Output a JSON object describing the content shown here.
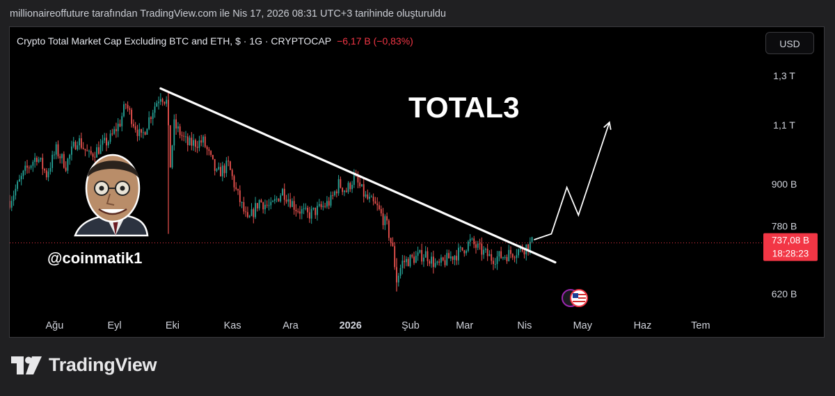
{
  "header": {
    "caption": "millionaireoffuture tarafından TradingView.com ile Nis 17, 2026 08:31 UTC+3 tarihinde oluşturuldu"
  },
  "legend": {
    "symbol": "Crypto Total Market Cap Excluding BTC and ETH, $ · 1G · CRYPTOCAP",
    "change": "−6,17 B (−0,83%)"
  },
  "toolbar": {
    "currency": "USD"
  },
  "overlay": {
    "title": "TOTAL3",
    "watermark_handle": "@coinmatik1"
  },
  "brand": {
    "name": "TradingView"
  },
  "chart_data": {
    "type": "candlestick",
    "symbol": "CRYPTOCAP:TOTAL3",
    "interval": "1G",
    "currency": "USD",
    "y_scale": "log",
    "y_ticks": [
      {
        "label": "1,3 T",
        "value": 1300
      },
      {
        "label": "1,1 T",
        "value": 1100
      },
      {
        "label": "900 B",
        "value": 900
      },
      {
        "label": "780 B",
        "value": 780
      },
      {
        "label": "620 B",
        "value": 620
      }
    ],
    "x_ticks": [
      "Ağu",
      "Eyl",
      "Eki",
      "Kas",
      "Ara",
      "2026",
      "Şub",
      "Mar",
      "Nis",
      "May",
      "Haz",
      "Tem"
    ],
    "x_range": [
      "2025-07-20",
      "2026-07-31"
    ],
    "last_price": {
      "label": "737,08 B",
      "value": 737.08,
      "countdown": "18:28:23"
    },
    "close_path": [
      [
        "2025-07-20",
        850
      ],
      [
        "2025-07-28",
        940
      ],
      [
        "2025-08-03",
        990
      ],
      [
        "2025-08-08",
        930
      ],
      [
        "2025-08-13",
        1010
      ],
      [
        "2025-08-18",
        960
      ],
      [
        "2025-08-24",
        1050
      ],
      [
        "2025-08-30",
        990
      ],
      [
        "2025-09-05",
        1020
      ],
      [
        "2025-09-10",
        1050
      ],
      [
        "2025-09-15",
        1110
      ],
      [
        "2025-09-18",
        1180
      ],
      [
        "2025-09-22",
        1110
      ],
      [
        "2025-09-26",
        1050
      ],
      [
        "2025-10-02",
        1160
      ],
      [
        "2025-10-06",
        1220
      ],
      [
        "2025-10-09",
        1190
      ],
      [
        "2025-10-11",
        960
      ],
      [
        "2025-10-13",
        1100
      ],
      [
        "2025-10-20",
        1030
      ],
      [
        "2025-10-28",
        1040
      ],
      [
        "2025-11-04",
        930
      ],
      [
        "2025-11-10",
        960
      ],
      [
        "2025-11-14",
        880
      ],
      [
        "2025-11-20",
        790
      ],
      [
        "2025-11-26",
        850
      ],
      [
        "2025-12-02",
        830
      ],
      [
        "2025-12-08",
        880
      ],
      [
        "2025-12-15",
        830
      ],
      [
        "2025-12-21",
        810
      ],
      [
        "2025-12-28",
        830
      ],
      [
        "2026-01-02",
        850
      ],
      [
        "2026-01-06",
        900
      ],
      [
        "2026-01-10",
        880
      ],
      [
        "2026-01-14",
        920
      ],
      [
        "2026-01-20",
        860
      ],
      [
        "2026-01-26",
        830
      ],
      [
        "2026-01-31",
        780
      ],
      [
        "2026-02-03",
        720
      ],
      [
        "2026-02-05",
        650
      ],
      [
        "2026-02-08",
        690
      ],
      [
        "2026-02-14",
        700
      ],
      [
        "2026-02-20",
        710
      ],
      [
        "2026-02-26",
        680
      ],
      [
        "2026-03-04",
        700
      ],
      [
        "2026-03-10",
        715
      ],
      [
        "2026-03-15",
        740
      ],
      [
        "2026-03-20",
        720
      ],
      [
        "2026-03-26",
        700
      ],
      [
        "2026-04-01",
        705
      ],
      [
        "2026-04-07",
        715
      ],
      [
        "2026-04-12",
        725
      ],
      [
        "2026-04-16",
        737
      ]
    ],
    "downtrend_line": {
      "from": [
        "2025-10-06",
        1245
      ],
      "to": [
        "2026-04-28",
        690
      ]
    },
    "projection_arrow": [
      [
        "2026-04-17",
        745
      ],
      [
        "2026-04-26",
        760
      ],
      [
        "2026-05-04",
        890
      ],
      [
        "2026-05-10",
        810
      ],
      [
        "2026-05-26",
        1110
      ]
    ]
  }
}
